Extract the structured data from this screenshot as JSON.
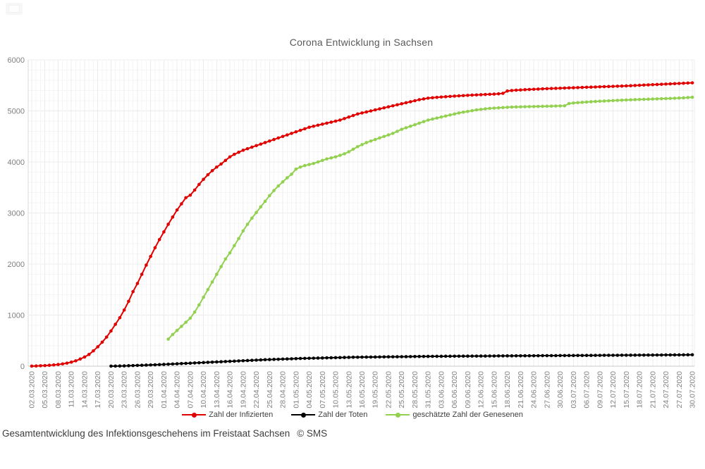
{
  "footer": {
    "caption": "Gesamtentwicklung des Infektionsgeschehens im Freistaat Sachsen",
    "copyright": "© SMS"
  },
  "chart_data": {
    "type": "line",
    "title": "Corona Entwicklung in Sachsen",
    "xlabel": "",
    "ylabel": "",
    "ylim": [
      0,
      6000
    ],
    "y_ticks": [
      0,
      1000,
      2000,
      3000,
      4000,
      5000,
      6000
    ],
    "grid": "on",
    "legend_position": "bottom",
    "x_start_date": "02.03.2020",
    "x_end_date": "30.07.2020",
    "x_resolution": "daily",
    "x_label_every_n_days": 3,
    "x_labels": [
      "02.03.2020",
      "05.03.2020",
      "08.03.2020",
      "11.03.2020",
      "14.03.2020",
      "17.03.2020",
      "20.03.2020",
      "23.03.2020",
      "26.03.2020",
      "29.03.2020",
      "01.04.2020",
      "04.04.2020",
      "07.04.2020",
      "10.04.2020",
      "13.04.2020",
      "16.04.2020",
      "19.04.2020",
      "22.04.2020",
      "25.04.2020",
      "28.04.2020",
      "01.05.2020",
      "04.05.2020",
      "07.05.2020",
      "10.05.2020",
      "13.05.2020",
      "16.05.2020",
      "19.05.2020",
      "22.05.2020",
      "25.05.2020",
      "28.05.2020",
      "31.05.2020",
      "03.06.2020",
      "06.06.2020",
      "09.06.2020",
      "12.06.2020",
      "15.06.2020",
      "18.06.2020",
      "21.06.2020",
      "24.06.2020",
      "27.06.2020",
      "30.06.2020",
      "03.07.2020",
      "06.07.2020",
      "09.07.2020",
      "12.07.2020",
      "15.07.2020",
      "18.07.2020",
      "21.07.2020",
      "24.07.2020",
      "27.07.2020",
      "30.07.2020"
    ],
    "series": [
      {
        "label": "Zahl der Infizierten",
        "color": "#e00000",
        "start_index": 0,
        "values": [
          1,
          4,
          8,
          12,
          18,
          25,
          33,
          45,
          60,
          80,
          105,
          140,
          180,
          230,
          300,
          380,
          470,
          570,
          690,
          820,
          950,
          1100,
          1270,
          1460,
          1620,
          1800,
          1980,
          2150,
          2320,
          2480,
          2630,
          2780,
          2920,
          3060,
          3180,
          3300,
          3350,
          3450,
          3560,
          3660,
          3750,
          3830,
          3900,
          3960,
          4030,
          4100,
          4150,
          4190,
          4230,
          4260,
          4290,
          4320,
          4350,
          4380,
          4410,
          4440,
          4470,
          4500,
          4530,
          4560,
          4590,
          4620,
          4650,
          4680,
          4700,
          4720,
          4740,
          4760,
          4780,
          4800,
          4820,
          4850,
          4880,
          4910,
          4940,
          4960,
          4980,
          5000,
          5020,
          5040,
          5060,
          5080,
          5100,
          5120,
          5140,
          5160,
          5180,
          5200,
          5220,
          5235,
          5250,
          5258,
          5265,
          5272,
          5278,
          5284,
          5290,
          5295,
          5300,
          5305,
          5310,
          5314,
          5318,
          5322,
          5326,
          5330,
          5335,
          5345,
          5390,
          5400,
          5406,
          5411,
          5416,
          5420,
          5424,
          5428,
          5432,
          5436,
          5439,
          5442,
          5445,
          5448,
          5451,
          5454,
          5457,
          5460,
          5463,
          5466,
          5469,
          5472,
          5475,
          5478,
          5481,
          5484,
          5487,
          5490,
          5494,
          5498,
          5502,
          5506,
          5510,
          5514,
          5518,
          5522,
          5526,
          5530,
          5534,
          5538,
          5542,
          5546,
          5550
        ]
      },
      {
        "label": "Zahl der Toten",
        "color": "#000000",
        "start_index": 18,
        "values": [
          1,
          2,
          4,
          6,
          9,
          12,
          15,
          18,
          21,
          24,
          27,
          31,
          35,
          39,
          43,
          47,
          51,
          55,
          59,
          63,
          67,
          71,
          75,
          79,
          83,
          87,
          91,
          95,
          99,
          103,
          107,
          111,
          115,
          119,
          123,
          127,
          130,
          133,
          136,
          139,
          142,
          145,
          148,
          151,
          153,
          155,
          157,
          159,
          161,
          163,
          165,
          167,
          169,
          171,
          173,
          175,
          176,
          177,
          178,
          179,
          180,
          181,
          182,
          183,
          184,
          185,
          186,
          187,
          188,
          189,
          190,
          191,
          192,
          193,
          194,
          194,
          195,
          195,
          196,
          196,
          197,
          197,
          198,
          198,
          199,
          199,
          200,
          200,
          201,
          201,
          202,
          202,
          203,
          203,
          204,
          204,
          205,
          205,
          206,
          206,
          207,
          207,
          208,
          208,
          209,
          209,
          210,
          210,
          211,
          211,
          212,
          212,
          213,
          213,
          214,
          214,
          215,
          215,
          216,
          216,
          217,
          217,
          218,
          218,
          219,
          219,
          220,
          220,
          221,
          221,
          222,
          223,
          224
        ]
      },
      {
        "label": "geschätzte Zahl der Genesenen",
        "color": "#92d050",
        "start_index": 31,
        "values": [
          530,
          620,
          700,
          780,
          860,
          940,
          1060,
          1200,
          1350,
          1500,
          1650,
          1800,
          1950,
          2100,
          2220,
          2360,
          2500,
          2650,
          2780,
          2900,
          3010,
          3120,
          3230,
          3340,
          3440,
          3530,
          3610,
          3690,
          3760,
          3860,
          3900,
          3930,
          3950,
          3970,
          4000,
          4030,
          4060,
          4080,
          4100,
          4130,
          4160,
          4200,
          4250,
          4300,
          4340,
          4380,
          4410,
          4440,
          4470,
          4500,
          4530,
          4560,
          4600,
          4640,
          4670,
          4700,
          4730,
          4760,
          4790,
          4820,
          4840,
          4860,
          4880,
          4900,
          4920,
          4940,
          4960,
          4975,
          4990,
          5005,
          5020,
          5030,
          5040,
          5050,
          5055,
          5060,
          5065,
          5070,
          5075,
          5078,
          5080,
          5082,
          5084,
          5086,
          5088,
          5090,
          5092,
          5094,
          5096,
          5098,
          5100,
          5145,
          5155,
          5162,
          5168,
          5174,
          5180,
          5185,
          5190,
          5194,
          5198,
          5202,
          5206,
          5210,
          5214,
          5218,
          5221,
          5224,
          5227,
          5230,
          5233,
          5236,
          5239,
          5242,
          5245,
          5248,
          5252,
          5256,
          5262,
          5268
        ]
      }
    ]
  }
}
